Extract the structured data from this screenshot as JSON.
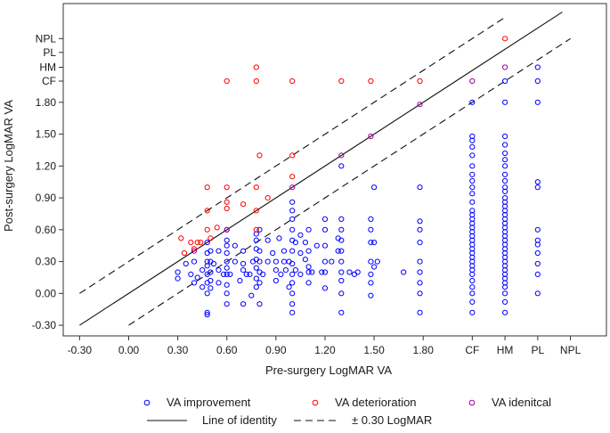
{
  "chart_data": {
    "type": "scatter",
    "xlabel": "Pre-surgery LogMAR VA",
    "ylabel": "Post-surgery LogMAR VA",
    "xlim": [
      -0.4,
      2.92
    ],
    "ylim": [
      -0.4,
      2.73
    ],
    "grid": false,
    "legend_position": "bottom",
    "x_ticks": [
      {
        "value": -0.3,
        "label": "-0.30"
      },
      {
        "value": 0.0,
        "label": "0.00"
      },
      {
        "value": 0.3,
        "label": "0.30"
      },
      {
        "value": 0.6,
        "label": "0.60"
      },
      {
        "value": 0.9,
        "label": "0.90"
      },
      {
        "value": 1.2,
        "label": "1.20"
      },
      {
        "value": 1.5,
        "label": "1.50"
      },
      {
        "value": 1.8,
        "label": "1.80"
      },
      {
        "value": 2.1,
        "label": "CF"
      },
      {
        "value": 2.3,
        "label": "HM"
      },
      {
        "value": 2.5,
        "label": "PL"
      },
      {
        "value": 2.7,
        "label": "NPL"
      }
    ],
    "y_ticks": [
      {
        "value": -0.3,
        "label": "-0.30"
      },
      {
        "value": 0.0,
        "label": "0.00"
      },
      {
        "value": 0.3,
        "label": "0.30"
      },
      {
        "value": 0.6,
        "label": "0.60"
      },
      {
        "value": 0.9,
        "label": "0.90"
      },
      {
        "value": 1.2,
        "label": "1.20"
      },
      {
        "value": 1.5,
        "label": "1.50"
      },
      {
        "value": 1.8,
        "label": "1.80"
      },
      {
        "value": 2.0,
        "label": "CF"
      },
      {
        "value": 2.13,
        "label": "HM"
      },
      {
        "value": 2.27,
        "label": "PL"
      },
      {
        "value": 2.4,
        "label": "NPL"
      }
    ],
    "lines": [
      {
        "name": "Line of identity",
        "style": "solid",
        "offset": 0.0
      },
      {
        "name": "± 0.30 LogMAR",
        "style": "dashed",
        "offset": 0.3
      },
      {
        "name": "± 0.30 LogMAR",
        "style": "dashed",
        "offset": -0.3
      }
    ],
    "series": [
      {
        "name": "VA improvement",
        "color": "#0000ff",
        "points": [
          [
            0.3,
            0.14
          ],
          [
            0.3,
            0.2
          ],
          [
            0.35,
            0.28
          ],
          [
            0.38,
            0.18
          ],
          [
            0.4,
            0.1
          ],
          [
            0.4,
            0.3
          ],
          [
            0.42,
            0.15
          ],
          [
            0.45,
            0.06
          ],
          [
            0.45,
            0.22
          ],
          [
            0.48,
            0.0
          ],
          [
            0.48,
            0.1
          ],
          [
            0.48,
            0.18
          ],
          [
            0.48,
            0.26
          ],
          [
            0.48,
            0.3
          ],
          [
            0.48,
            0.38
          ],
          [
            0.48,
            0.48
          ],
          [
            0.48,
            -0.2
          ],
          [
            0.48,
            -0.18
          ],
          [
            0.5,
            0.05
          ],
          [
            0.5,
            0.12
          ],
          [
            0.5,
            0.2
          ],
          [
            0.5,
            0.3
          ],
          [
            0.5,
            0.4
          ],
          [
            0.52,
            0.28
          ],
          [
            0.55,
            0.1
          ],
          [
            0.55,
            0.4
          ],
          [
            0.55,
            0.22
          ],
          [
            0.58,
            0.18
          ],
          [
            0.6,
            -0.1
          ],
          [
            0.6,
            0.0
          ],
          [
            0.6,
            0.08
          ],
          [
            0.6,
            0.18
          ],
          [
            0.6,
            0.24
          ],
          [
            0.6,
            0.3
          ],
          [
            0.6,
            0.38
          ],
          [
            0.6,
            0.45
          ],
          [
            0.6,
            0.5
          ],
          [
            0.6,
            0.6
          ],
          [
            0.62,
            0.18
          ],
          [
            0.65,
            0.3
          ],
          [
            0.65,
            0.45
          ],
          [
            0.68,
            0.12
          ],
          [
            0.7,
            -0.1
          ],
          [
            0.7,
            0.22
          ],
          [
            0.7,
            0.28
          ],
          [
            0.7,
            0.4
          ],
          [
            0.72,
            0.18
          ],
          [
            0.74,
            0.18
          ],
          [
            0.75,
            -0.02
          ],
          [
            0.76,
            0.3
          ],
          [
            0.78,
            0.06
          ],
          [
            0.78,
            0.14
          ],
          [
            0.78,
            0.24
          ],
          [
            0.78,
            0.32
          ],
          [
            0.78,
            0.42
          ],
          [
            0.78,
            0.5
          ],
          [
            0.78,
            0.56
          ],
          [
            0.8,
            0.1
          ],
          [
            0.8,
            0.2
          ],
          [
            0.8,
            0.3
          ],
          [
            0.8,
            0.4
          ],
          [
            0.8,
            0.6
          ],
          [
            0.8,
            -0.1
          ],
          [
            0.82,
            0.18
          ],
          [
            0.85,
            0.3
          ],
          [
            0.85,
            0.5
          ],
          [
            0.88,
            0.38
          ],
          [
            0.9,
            0.12
          ],
          [
            0.9,
            0.22
          ],
          [
            0.9,
            0.3
          ],
          [
            0.92,
            0.52
          ],
          [
            0.93,
            0.18
          ],
          [
            0.95,
            0.3
          ],
          [
            0.95,
            0.4
          ],
          [
            0.96,
            0.22
          ],
          [
            0.98,
            0.06
          ],
          [
            0.98,
            0.3
          ],
          [
            1.0,
            -0.1
          ],
          [
            1.0,
            -0.18
          ],
          [
            1.0,
            0.0
          ],
          [
            1.0,
            0.1
          ],
          [
            1.0,
            0.18
          ],
          [
            1.0,
            0.28
          ],
          [
            1.0,
            0.4
          ],
          [
            1.0,
            0.5
          ],
          [
            1.0,
            0.6
          ],
          [
            1.0,
            0.7
          ],
          [
            1.0,
            0.78
          ],
          [
            1.0,
            0.86
          ],
          [
            1.02,
            0.22
          ],
          [
            1.02,
            0.48
          ],
          [
            1.05,
            0.18
          ],
          [
            1.05,
            0.38
          ],
          [
            1.05,
            0.55
          ],
          [
            1.08,
            0.32
          ],
          [
            1.08,
            0.48
          ],
          [
            1.1,
            0.1
          ],
          [
            1.1,
            0.2
          ],
          [
            1.1,
            0.25
          ],
          [
            1.1,
            0.4
          ],
          [
            1.1,
            0.6
          ],
          [
            1.12,
            0.2
          ],
          [
            1.15,
            0.45
          ],
          [
            1.18,
            0.2
          ],
          [
            1.2,
            0.05
          ],
          [
            1.2,
            0.2
          ],
          [
            1.2,
            0.3
          ],
          [
            1.2,
            0.45
          ],
          [
            1.2,
            0.6
          ],
          [
            1.2,
            0.7
          ],
          [
            1.24,
            0.3
          ],
          [
            1.28,
            0.4
          ],
          [
            1.28,
            0.52
          ],
          [
            1.3,
            -0.18
          ],
          [
            1.3,
            0.0
          ],
          [
            1.3,
            0.12
          ],
          [
            1.3,
            0.2
          ],
          [
            1.3,
            0.3
          ],
          [
            1.3,
            0.4
          ],
          [
            1.3,
            0.5
          ],
          [
            1.3,
            0.6
          ],
          [
            1.3,
            0.7
          ],
          [
            1.3,
            1.2
          ],
          [
            1.35,
            0.2
          ],
          [
            1.38,
            0.18
          ],
          [
            1.4,
            0.2
          ],
          [
            1.48,
            -0.02
          ],
          [
            1.48,
            0.1
          ],
          [
            1.48,
            0.18
          ],
          [
            1.48,
            0.3
          ],
          [
            1.48,
            0.48
          ],
          [
            1.48,
            0.6
          ],
          [
            1.48,
            0.7
          ],
          [
            1.5,
            0.25
          ],
          [
            1.5,
            0.48
          ],
          [
            1.5,
            1.0
          ],
          [
            1.52,
            0.3
          ],
          [
            1.68,
            0.2
          ],
          [
            1.78,
            -0.18
          ],
          [
            1.78,
            0.0
          ],
          [
            1.78,
            0.1
          ],
          [
            1.78,
            0.2
          ],
          [
            1.78,
            0.3
          ],
          [
            1.78,
            0.48
          ],
          [
            1.78,
            0.6
          ],
          [
            1.78,
            0.68
          ],
          [
            1.78,
            1.0
          ],
          [
            2.1,
            -0.18
          ],
          [
            2.1,
            -0.08
          ],
          [
            2.1,
            0.0
          ],
          [
            2.1,
            0.06
          ],
          [
            2.1,
            0.12
          ],
          [
            2.1,
            0.18
          ],
          [
            2.1,
            0.22
          ],
          [
            2.1,
            0.26
          ],
          [
            2.1,
            0.3
          ],
          [
            2.1,
            0.34
          ],
          [
            2.1,
            0.38
          ],
          [
            2.1,
            0.42
          ],
          [
            2.1,
            0.46
          ],
          [
            2.1,
            0.5
          ],
          [
            2.1,
            0.54
          ],
          [
            2.1,
            0.58
          ],
          [
            2.1,
            0.62
          ],
          [
            2.1,
            0.66
          ],
          [
            2.1,
            0.7
          ],
          [
            2.1,
            0.74
          ],
          [
            2.1,
            0.78
          ],
          [
            2.1,
            0.86
          ],
          [
            2.1,
            0.94
          ],
          [
            2.1,
            1.0
          ],
          [
            2.1,
            1.06
          ],
          [
            2.1,
            1.12
          ],
          [
            2.1,
            1.2
          ],
          [
            2.1,
            1.3
          ],
          [
            2.1,
            1.38
          ],
          [
            2.1,
            1.44
          ],
          [
            2.1,
            1.48
          ],
          [
            2.1,
            1.8
          ],
          [
            2.3,
            -0.18
          ],
          [
            2.3,
            -0.08
          ],
          [
            2.3,
            0.0
          ],
          [
            2.3,
            0.06
          ],
          [
            2.3,
            0.1
          ],
          [
            2.3,
            0.14
          ],
          [
            2.3,
            0.18
          ],
          [
            2.3,
            0.22
          ],
          [
            2.3,
            0.26
          ],
          [
            2.3,
            0.3
          ],
          [
            2.3,
            0.34
          ],
          [
            2.3,
            0.38
          ],
          [
            2.3,
            0.42
          ],
          [
            2.3,
            0.46
          ],
          [
            2.3,
            0.5
          ],
          [
            2.3,
            0.54
          ],
          [
            2.3,
            0.58
          ],
          [
            2.3,
            0.62
          ],
          [
            2.3,
            0.66
          ],
          [
            2.3,
            0.7
          ],
          [
            2.3,
            0.74
          ],
          [
            2.3,
            0.78
          ],
          [
            2.3,
            0.82
          ],
          [
            2.3,
            0.86
          ],
          [
            2.3,
            0.9
          ],
          [
            2.3,
            0.96
          ],
          [
            2.3,
            1.0
          ],
          [
            2.3,
            1.06
          ],
          [
            2.3,
            1.12
          ],
          [
            2.3,
            1.2
          ],
          [
            2.3,
            1.26
          ],
          [
            2.3,
            1.32
          ],
          [
            2.3,
            1.4
          ],
          [
            2.3,
            1.48
          ],
          [
            2.3,
            1.8
          ],
          [
            2.3,
            2.0
          ],
          [
            2.5,
            0.0
          ],
          [
            2.5,
            0.18
          ],
          [
            2.5,
            0.28
          ],
          [
            2.5,
            0.38
          ],
          [
            2.5,
            0.46
          ],
          [
            2.5,
            0.5
          ],
          [
            2.5,
            0.6
          ],
          [
            2.5,
            1.0
          ],
          [
            2.5,
            1.05
          ],
          [
            2.5,
            1.8
          ],
          [
            2.5,
            2.0
          ],
          [
            2.5,
            2.13
          ]
        ]
      },
      {
        "name": "VA deterioration",
        "color": "#ff0000",
        "points": [
          [
            0.32,
            0.52
          ],
          [
            0.34,
            0.38
          ],
          [
            0.38,
            0.48
          ],
          [
            0.4,
            0.42
          ],
          [
            0.42,
            0.48
          ],
          [
            0.44,
            0.48
          ],
          [
            0.48,
            0.6
          ],
          [
            0.48,
            0.78
          ],
          [
            0.48,
            1.0
          ],
          [
            0.5,
            0.52
          ],
          [
            0.54,
            0.62
          ],
          [
            0.6,
            0.8
          ],
          [
            0.6,
            0.86
          ],
          [
            0.6,
            1.0
          ],
          [
            0.6,
            2.0
          ],
          [
            0.7,
            0.84
          ],
          [
            0.78,
            0.6
          ],
          [
            0.78,
            0.78
          ],
          [
            0.78,
            1.0
          ],
          [
            0.78,
            2.0
          ],
          [
            0.78,
            2.13
          ],
          [
            0.8,
            1.3
          ],
          [
            0.85,
            0.9
          ],
          [
            1.0,
            1.1
          ],
          [
            1.0,
            1.3
          ],
          [
            1.0,
            2.0
          ],
          [
            1.3,
            2.0
          ],
          [
            1.48,
            2.0
          ],
          [
            1.78,
            2.0
          ],
          [
            2.3,
            2.4
          ]
        ]
      },
      {
        "name": "VA idenitcal",
        "color": "#990099",
        "points": [
          [
            0.4,
            0.4
          ],
          [
            0.6,
            0.6
          ],
          [
            1.0,
            1.0
          ],
          [
            1.3,
            1.3
          ],
          [
            1.48,
            1.48
          ],
          [
            1.78,
            1.78
          ],
          [
            2.1,
            2.0
          ],
          [
            2.3,
            2.13
          ]
        ]
      }
    ]
  }
}
